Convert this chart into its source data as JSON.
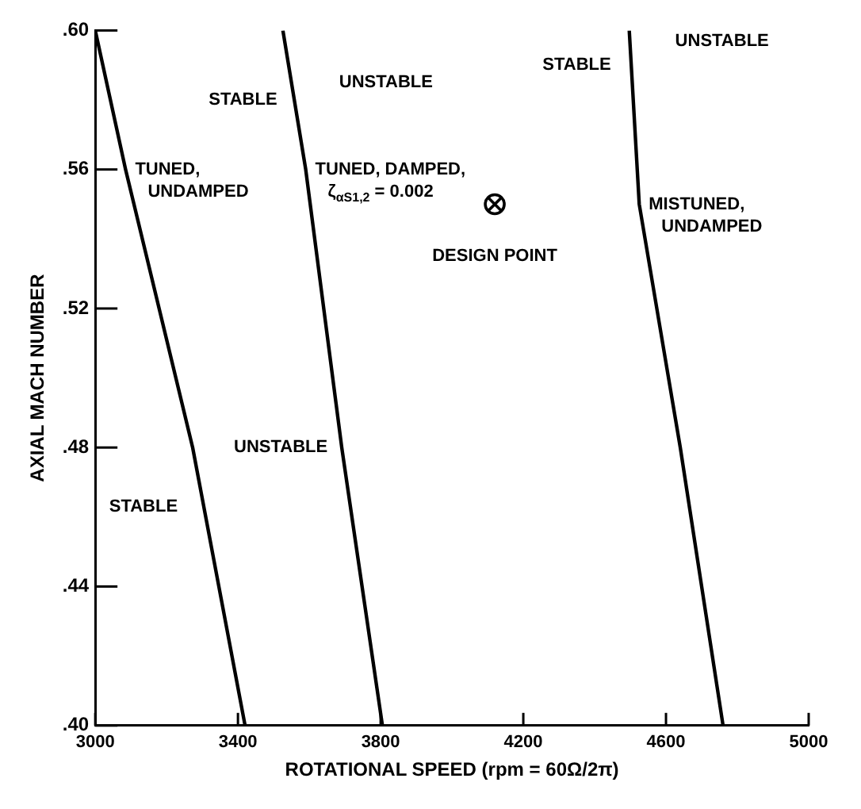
{
  "chart_data": {
    "type": "line",
    "xlabel": "ROTATIONAL SPEED (rpm = 60Ω/2π)",
    "ylabel": "AXIAL MACH NUMBER",
    "xlim": [
      3000,
      5000
    ],
    "xticks": [
      3000,
      3400,
      3800,
      4200,
      4600,
      5000
    ],
    "ylim": [
      0.4,
      0.6
    ],
    "yticks": [
      {
        "value": 0.4,
        "label": ".40"
      },
      {
        "value": 0.44,
        "label": ".44"
      },
      {
        "value": 0.48,
        "label": ".48"
      },
      {
        "value": 0.52,
        "label": ".52"
      },
      {
        "value": 0.56,
        "label": ".56"
      },
      {
        "value": 0.6,
        "label": ".60"
      }
    ],
    "grid": false,
    "marker": "none",
    "line_style": "solid",
    "series": [
      {
        "name": "TUNED, UNDAMPED",
        "color": "#000000",
        "x": [
          3000,
          3085,
          3273,
          3420
        ],
        "values": [
          0.6,
          0.56,
          0.48,
          0.4
        ]
      },
      {
        "name": "TUNED, DAMPED, ζ$_{αS1,2}$ = 0.002",
        "color": "#000000",
        "x": [
          3526,
          3590,
          3691,
          3805
        ],
        "values": [
          0.6,
          0.56,
          0.48,
          0.4
        ]
      },
      {
        "name": "MISTUNED, UNDAMPED",
        "color": "#000000",
        "x": [
          4497,
          4525,
          4640,
          4760
        ],
        "values": [
          0.6,
          0.55,
          0.48,
          0.4
        ]
      },
      {
        "type": "scatter",
        "marker": "circle",
        "color": "#000000",
        "x": [
          4120
        ],
        "values": [
          0.55
        ]
      }
    ],
    "annotations": [
      "STABLE",
      "UNSTABLE",
      "STABLE",
      "UNSTABLE",
      "STABLE",
      "UNSTABLE",
      "DESIGN POINT"
    ]
  }
}
